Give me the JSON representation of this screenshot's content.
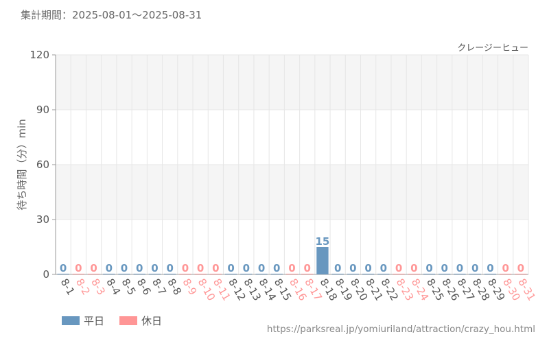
{
  "period_label": "集計期間：2025-08-01～2025-08-31",
  "source_url": "https://parksreal.jp/yomiuriland/attraction/crazy_hou.html",
  "colors": {
    "weekday": "#6897bf",
    "holiday": "#ff9696",
    "tick_text": "#555555"
  },
  "legend": [
    {
      "label": "平日",
      "color": "#6897bf"
    },
    {
      "label": "休日",
      "color": "#ff9696"
    }
  ],
  "chart_data": {
    "type": "bar",
    "title": "クレージーヒュー",
    "ylabel": "待ち時間（分）min",
    "xlabel": "",
    "ylim": [
      0,
      120
    ],
    "yticks": [
      0,
      30,
      60,
      90,
      120
    ],
    "grid": true,
    "legend_position": "bottom-left",
    "categories": [
      "8-1",
      "8-2",
      "8-3",
      "8-4",
      "8-5",
      "8-6",
      "8-7",
      "8-8",
      "8-9",
      "8-10",
      "8-11",
      "8-12",
      "8-13",
      "8-14",
      "8-15",
      "8-16",
      "8-17",
      "8-18",
      "8-19",
      "8-20",
      "8-21",
      "8-22",
      "8-23",
      "8-24",
      "8-25",
      "8-26",
      "8-27",
      "8-28",
      "8-29",
      "8-30",
      "8-31"
    ],
    "values": [
      0,
      0,
      0,
      0,
      0,
      0,
      0,
      0,
      0,
      0,
      0,
      0,
      0,
      0,
      0,
      0,
      0,
      15,
      0,
      0,
      0,
      0,
      0,
      0,
      0,
      0,
      0,
      0,
      0,
      0,
      0
    ],
    "holiday": [
      false,
      true,
      true,
      false,
      false,
      false,
      false,
      false,
      true,
      true,
      true,
      false,
      false,
      false,
      false,
      true,
      true,
      false,
      false,
      false,
      false,
      false,
      true,
      true,
      false,
      false,
      false,
      false,
      false,
      true,
      true
    ]
  }
}
